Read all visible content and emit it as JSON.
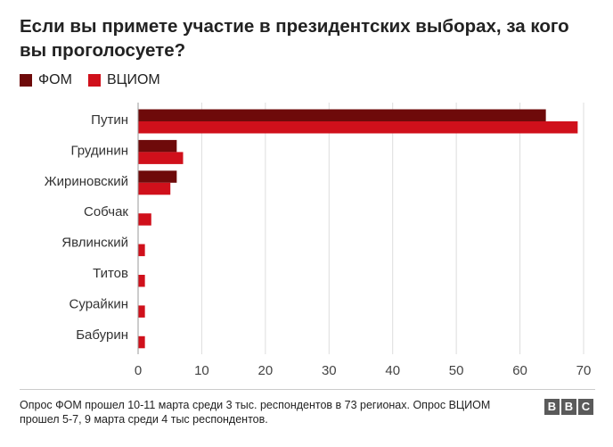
{
  "chart_data": {
    "type": "bar",
    "orientation": "horizontal",
    "title": "Если вы примете участие в президентских выборах, за кого вы проголосуете?",
    "categories": [
      "Путин",
      "Грудинин",
      "Жириновский",
      "Собчак",
      "Явлинский",
      "Титов",
      "Сурайкин",
      "Бабурин"
    ],
    "series": [
      {
        "name": "ФОМ",
        "color": "#6e0a0a",
        "values": [
          64,
          6,
          6,
          null,
          null,
          null,
          null,
          null
        ]
      },
      {
        "name": "ВЦИОМ",
        "color": "#d0101b",
        "values": [
          69,
          7,
          5,
          2,
          1,
          1,
          1,
          1
        ]
      }
    ],
    "xlim": [
      0,
      70
    ],
    "xticks": [
      0,
      10,
      20,
      30,
      40,
      50,
      60,
      70
    ],
    "xlabel": "",
    "ylabel": "",
    "grid": "vertical",
    "legend": "top-left"
  },
  "source": "Опрос ФОМ прошел 10-11 марта среди 3 тыс. респондентов в 73 регионах. Опрос ВЦИОМ прошел 5-7, 9 марта среди 4 тыс респондентов.",
  "logo": {
    "letters": [
      "B",
      "B",
      "C"
    ]
  }
}
